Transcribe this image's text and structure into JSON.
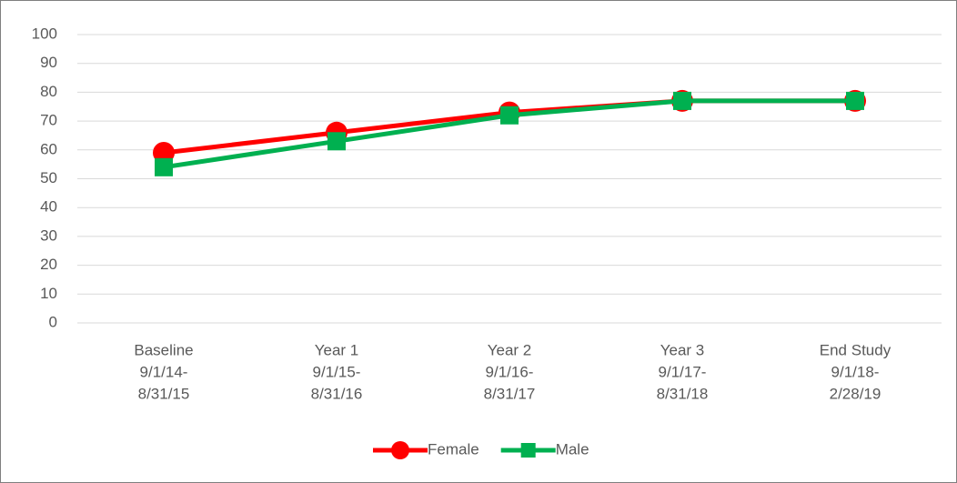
{
  "chart_data": {
    "type": "line",
    "categories": [
      [
        "Baseline",
        "9/1/14-",
        "8/31/15"
      ],
      [
        "Year 1",
        "9/1/15-",
        "8/31/16"
      ],
      [
        "Year 2",
        "9/1/16-",
        "8/31/17"
      ],
      [
        "Year 3",
        "9/1/17-",
        "8/31/18"
      ],
      [
        "End Study",
        "9/1/18-",
        "2/28/19"
      ]
    ],
    "series": [
      {
        "name": "Female",
        "color": "#ff0000",
        "marker": "circle",
        "values": [
          59,
          66,
          73,
          77,
          77
        ]
      },
      {
        "name": "Male",
        "color": "#00b050",
        "marker": "square",
        "values": [
          54,
          63,
          72,
          77,
          77
        ]
      }
    ],
    "ylim": [
      0,
      100
    ],
    "yticks": [
      0,
      10,
      20,
      30,
      40,
      50,
      60,
      70,
      80,
      90,
      100
    ],
    "grid": true,
    "legend": "bottom"
  }
}
